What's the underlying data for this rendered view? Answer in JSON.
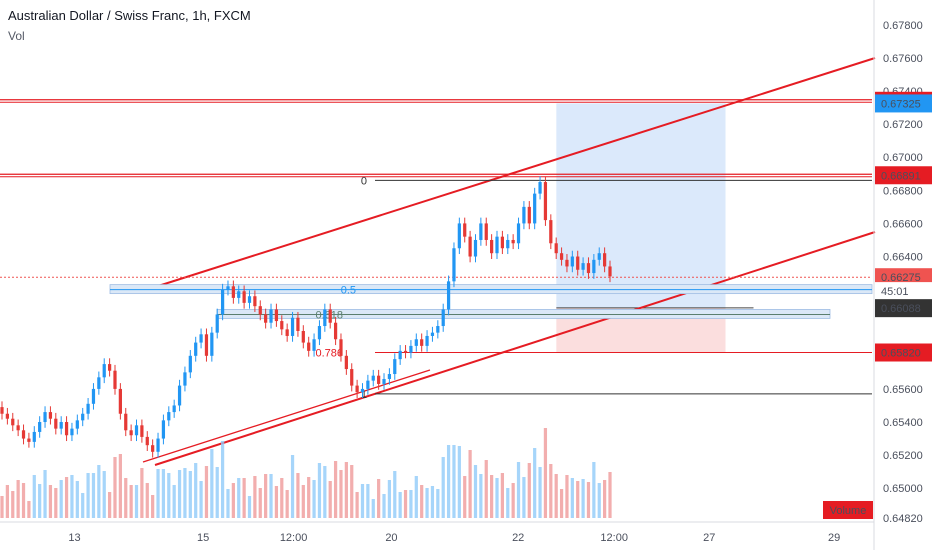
{
  "header": {
    "title": "Australian Dollar / Swiss Franc, 1h, FXCM",
    "vol_label": "Vol"
  },
  "colors": {
    "up": "#2196f3",
    "down": "#e53935",
    "trend": "#e51c23",
    "target_zone": "#cfe2fa",
    "stop_zone": "#fad3d3",
    "fib_grey": "#555555"
  },
  "chart_data": {
    "type": "candlestick",
    "y_axis": {
      "range": [
        0.6482,
        0.6795
      ],
      "ticks": [
        "0.67800",
        "0.67600",
        "0.67400",
        "0.67200",
        "0.67000",
        "0.66800",
        "0.66600",
        "0.66400",
        "0.65600",
        "0.65400",
        "0.65200",
        "0.65000",
        "0.64820"
      ],
      "tick_values": [
        0.678,
        0.676,
        0.674,
        0.672,
        0.67,
        0.668,
        0.666,
        0.664,
        0.656,
        0.654,
        0.652,
        0.65,
        0.6482
      ]
    },
    "x_axis": {
      "ticks": [
        "13",
        "15",
        "12:00",
        "20",
        "22",
        "12:00",
        "27",
        "29"
      ],
      "tick_positions": [
        0.08,
        0.218,
        0.315,
        0.42,
        0.556,
        0.659,
        0.761,
        0.895
      ]
    },
    "price_labels": [
      {
        "text": "0.67341",
        "value": 0.67341,
        "bg": "#e51c23"
      },
      {
        "text": "0.67325",
        "value": 0.67325,
        "bg": "#2196f3"
      },
      {
        "text": "0.66891",
        "value": 0.66891,
        "bg": "#e51c23"
      },
      {
        "text": "0.66275",
        "value": 0.66275,
        "bg": "#ef5350"
      },
      {
        "text": "45:01",
        "value": 0.66191,
        "bg": "#ffffff"
      },
      {
        "text": "0.66088",
        "value": 0.66088,
        "bg": "#333333"
      },
      {
        "text": "0.65820",
        "value": 0.6582,
        "bg": "#e51c23"
      }
    ],
    "fib_levels": [
      {
        "label": "0",
        "value": 0.6686,
        "color": "#333333"
      },
      {
        "label": "0.5",
        "value": 0.662,
        "color": "#2196f3"
      },
      {
        "label": "0.618",
        "value": 0.6605,
        "color": "#5b7f6e"
      },
      {
        "label": "0.786",
        "value": 0.6582,
        "color": "#e51c23"
      },
      {
        "label": "1",
        "value": 0.6557,
        "color": "#333333"
      }
    ],
    "horizontal_lines": [
      0.67341,
      0.66891
    ],
    "current_price": 0.66275,
    "position": {
      "target_top": 0.67325,
      "entry": 0.6609,
      "stop": 0.6582,
      "x_start": 0.638,
      "x_end": 0.832
    },
    "volume_label": "Volume",
    "series": [
      {
        "name": "price",
        "values": [
          0.6545,
          0.6542,
          0.6538,
          0.6535,
          0.653,
          0.6528,
          0.6534,
          0.654,
          0.6546,
          0.6542,
          0.6536,
          0.654,
          0.6532,
          0.6536,
          0.6541,
          0.6545,
          0.6551,
          0.656,
          0.6567,
          0.6575,
          0.6571,
          0.656,
          0.6545,
          0.6535,
          0.6532,
          0.6538,
          0.6531,
          0.6526,
          0.6522,
          0.653,
          0.6541,
          0.6546,
          0.655,
          0.6562,
          0.657,
          0.658,
          0.6588,
          0.6593,
          0.658,
          0.6594,
          0.6605,
          0.662,
          0.6622,
          0.6615,
          0.6619,
          0.6612,
          0.6616,
          0.661,
          0.6605,
          0.66,
          0.6608,
          0.6601,
          0.6596,
          0.6592,
          0.6603,
          0.6595,
          0.6588,
          0.6583,
          0.659,
          0.6598,
          0.6608,
          0.66,
          0.659,
          0.658,
          0.6572,
          0.6562,
          0.6558,
          0.656,
          0.6565,
          0.6568,
          0.6563,
          0.6566,
          0.6569,
          0.6578,
          0.6583,
          0.6582,
          0.6586,
          0.659,
          0.6586,
          0.6592,
          0.6594,
          0.6598,
          0.6608,
          0.6625,
          0.6645,
          0.666,
          0.6652,
          0.664,
          0.665,
          0.666,
          0.665,
          0.6642,
          0.6652,
          0.6645,
          0.665,
          0.6648,
          0.666,
          0.667,
          0.666,
          0.6678,
          0.6685,
          0.6662,
          0.6648,
          0.6642,
          0.6638,
          0.6634,
          0.664,
          0.6632,
          0.6636,
          0.663,
          0.6638,
          0.6642,
          0.6634,
          0.6628
        ]
      }
    ]
  }
}
